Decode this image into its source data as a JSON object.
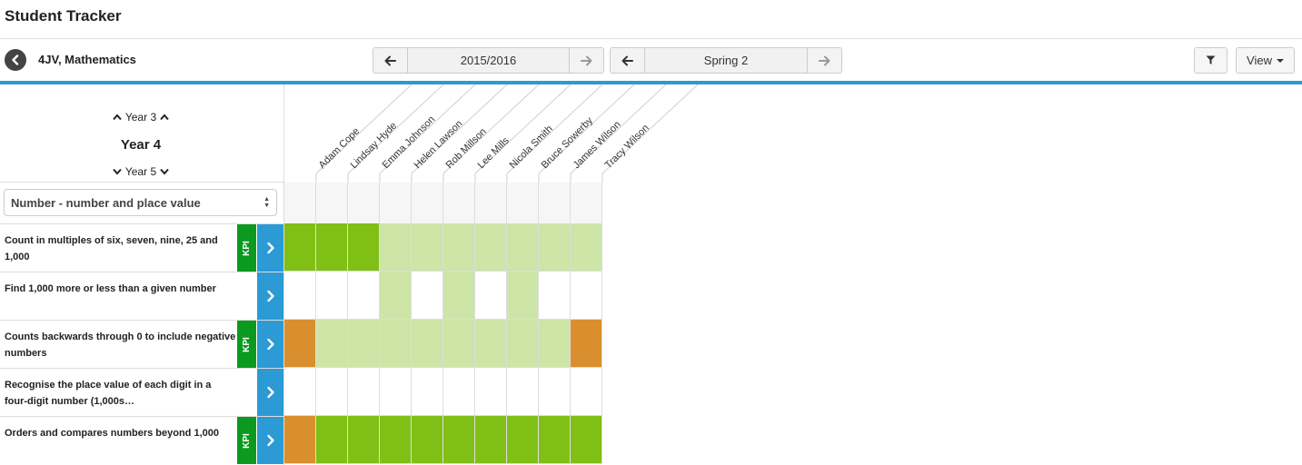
{
  "app": {
    "title": "Student Tracker"
  },
  "toolbar": {
    "class_label": "4JV, Mathematics",
    "year_pager": {
      "value": "2015/2016"
    },
    "term_pager": {
      "value": "Spring 2"
    },
    "view_label": "View"
  },
  "year_nav": {
    "prev": "Year 3",
    "current": "Year 4",
    "next": "Year 5"
  },
  "strand_select": {
    "selected": "Number - number and place value"
  },
  "kpi_label": "KPI",
  "colors": {
    "accent": "#2b9ad5",
    "kpi": "#0b9a1f",
    "secure": "#80bf16",
    "developing": "#cde5a6",
    "emerging": "#d98f2d",
    "none": "#ffffff"
  },
  "students": [
    "Adam Cope",
    "Lindsay Hyde",
    "Emma Johnson",
    "Helen Lawson",
    "Rob Millson",
    "Lee Mills",
    "Nicola Smith",
    "Bruce Sowerby",
    "James Wilson",
    "Tracy Wilson"
  ],
  "objectives": [
    {
      "text": "Count in multiples of six, seven, nine, 25 and 1,000",
      "kpi": true,
      "statuses": [
        "secure",
        "secure",
        "secure",
        "developing",
        "developing",
        "developing",
        "developing",
        "developing",
        "developing",
        "developing"
      ]
    },
    {
      "text": "Find 1,000 more or less than a given number",
      "kpi": false,
      "statuses": [
        "none",
        "none",
        "none",
        "developing",
        "none",
        "developing",
        "none",
        "developing",
        "none",
        "none"
      ]
    },
    {
      "text": "Counts backwards through 0 to include negative numbers",
      "kpi": true,
      "statuses": [
        "emerging",
        "developing",
        "developing",
        "developing",
        "developing",
        "developing",
        "developing",
        "developing",
        "developing",
        "emerging"
      ]
    },
    {
      "text": "Recognise the place value of each digit in a four-digit number (1,000s…",
      "kpi": false,
      "statuses": [
        "none",
        "none",
        "none",
        "none",
        "none",
        "none",
        "none",
        "none",
        "none",
        "none"
      ]
    },
    {
      "text": "Orders and compares numbers beyond 1,000",
      "kpi": true,
      "statuses": [
        "emerging",
        "secure",
        "secure",
        "secure",
        "secure",
        "secure",
        "secure",
        "secure",
        "secure",
        "secure"
      ]
    }
  ]
}
